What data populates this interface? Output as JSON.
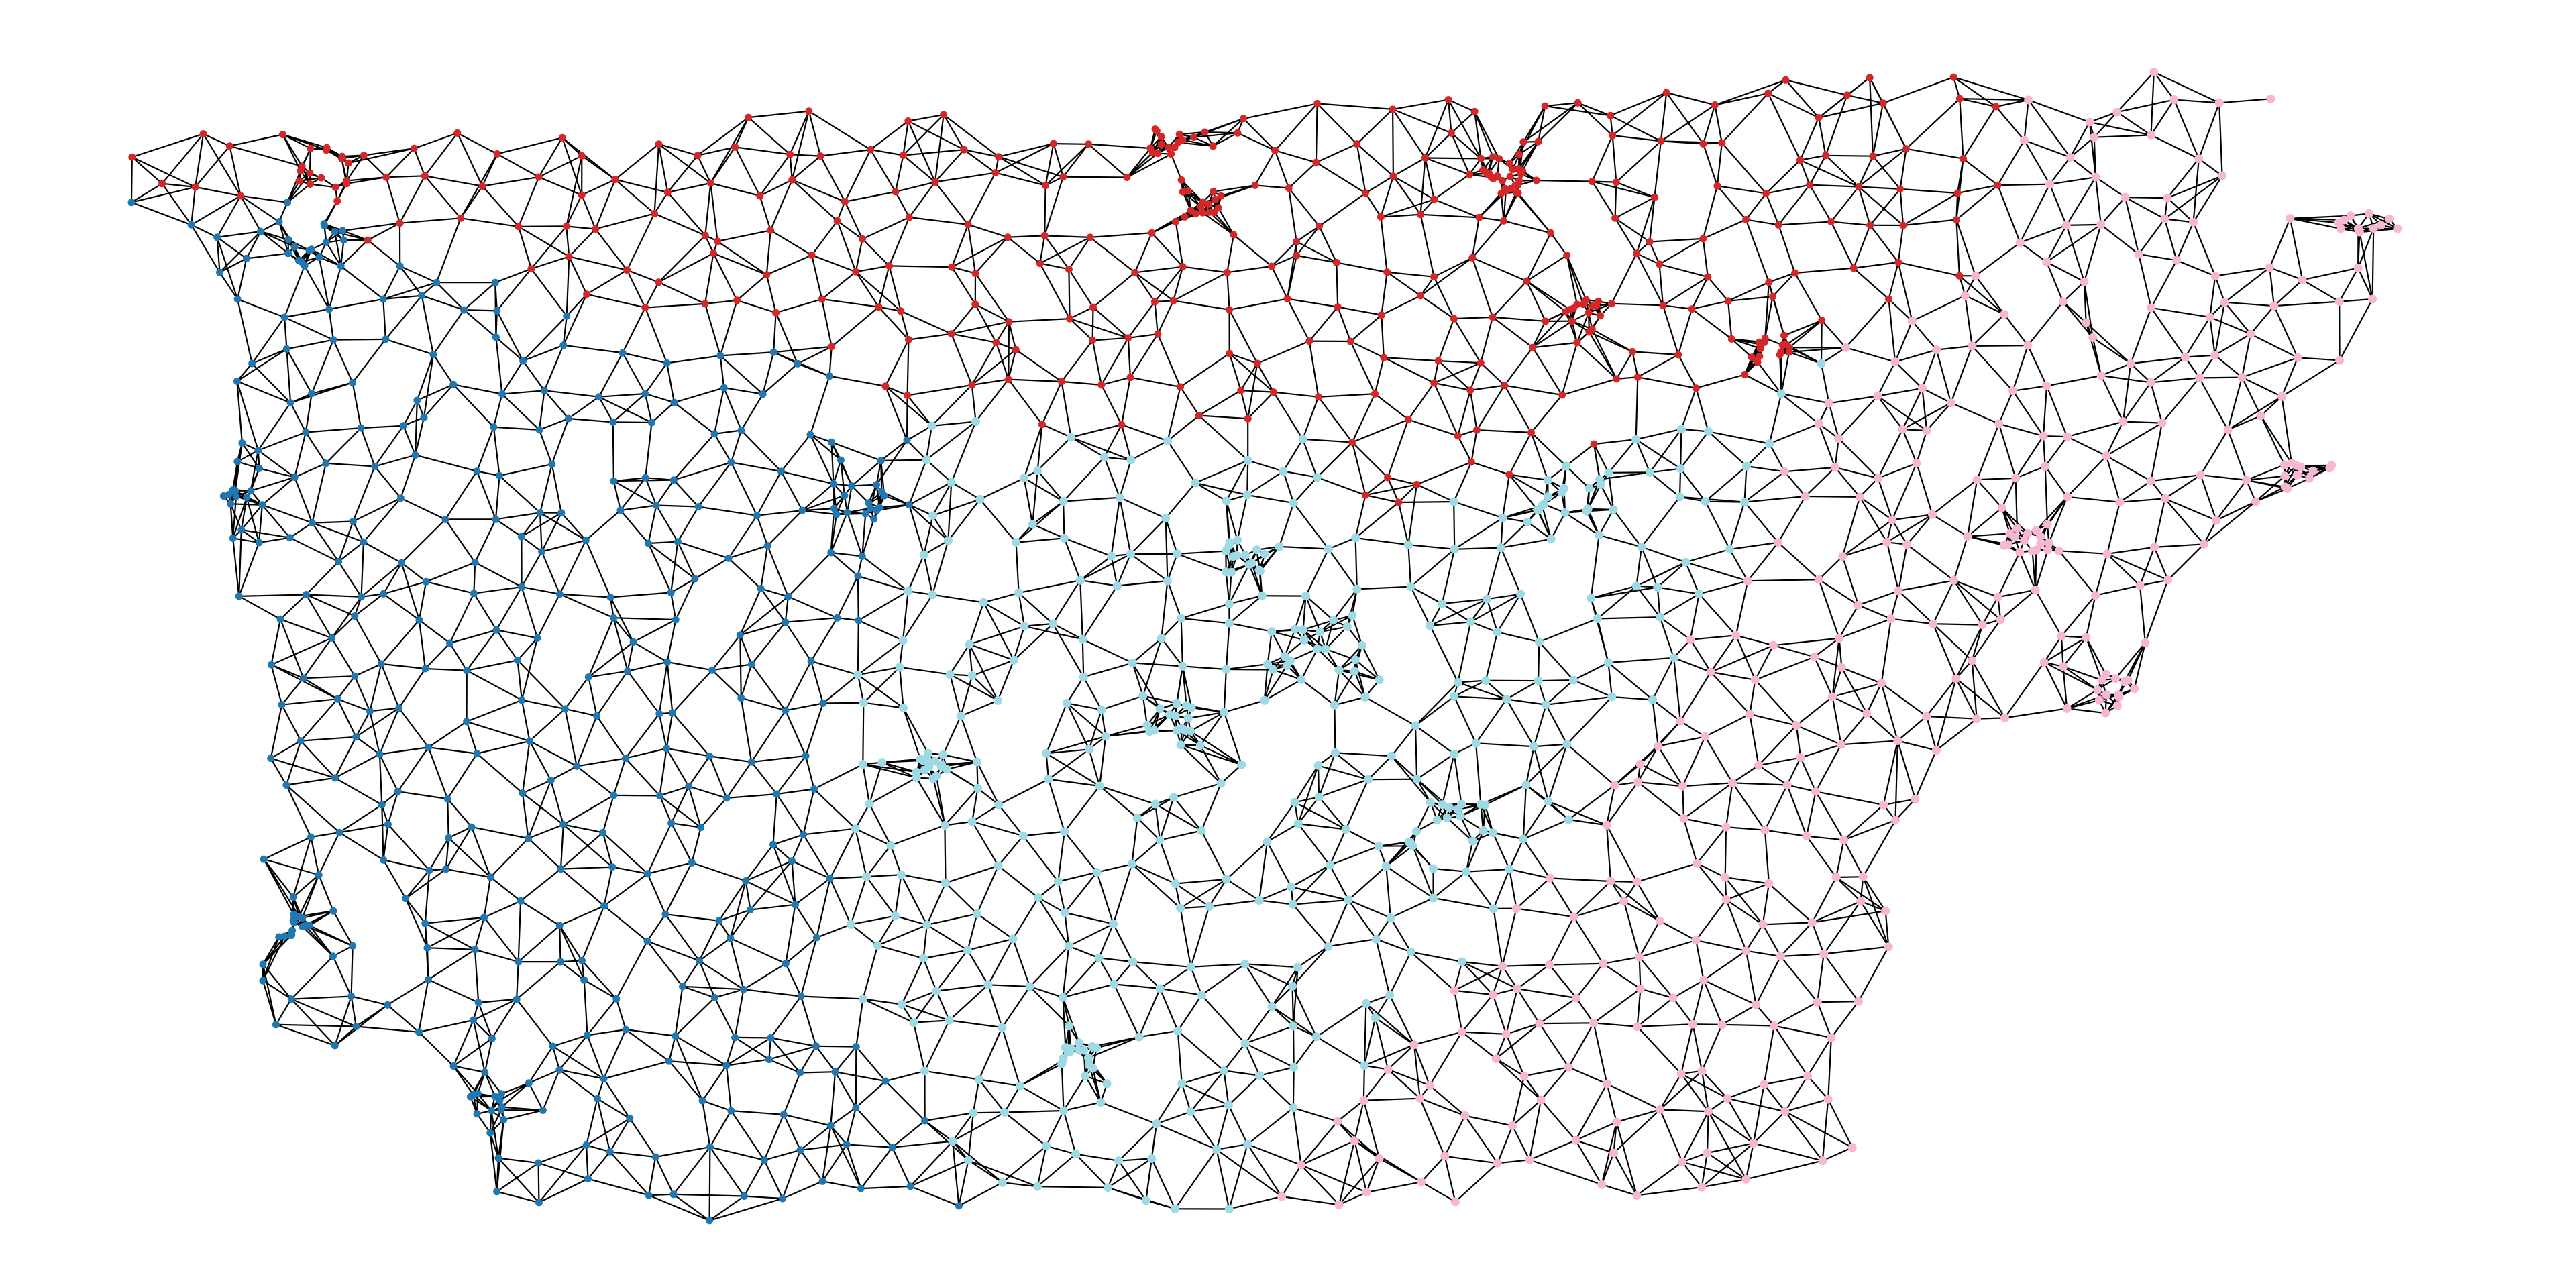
{
  "figure": {
    "type": "graph",
    "background": "#ffffff",
    "edge_color": "#000000",
    "text": [],
    "region_colors": {
      "northwest_cluster": "#1f77b4",
      "north_cluster": "#d62728",
      "central_cluster": "#9edae5",
      "east_cluster": "#f7b6d2"
    }
  }
}
